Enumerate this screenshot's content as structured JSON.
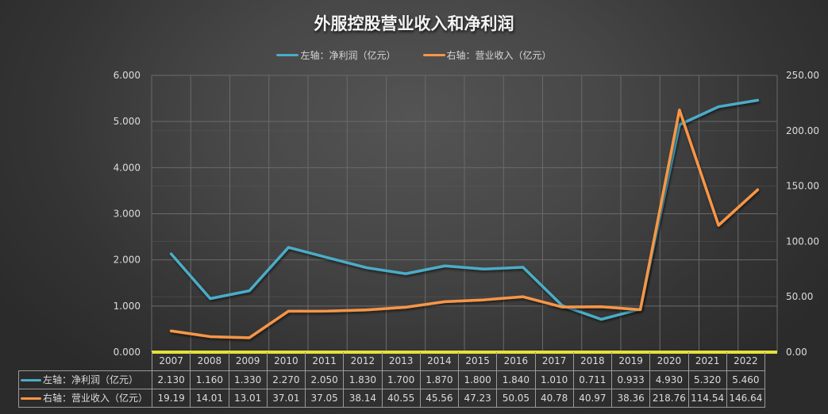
{
  "title": "外服控股营业收入和净利润",
  "legend": [
    {
      "label": "左轴：净利润（亿元）",
      "color": "#4BACC6"
    },
    {
      "label": "右轴：营业收入（亿元）",
      "color": "#F79646"
    }
  ],
  "colors": {
    "net_profit": "#4BACC6",
    "revenue": "#F79646",
    "baseline": "#E3E33A",
    "grid": "#6a6a6a"
  },
  "axes": {
    "left_ticks": [
      "6.000",
      "5.000",
      "4.000",
      "3.000",
      "2.000",
      "1.000",
      "0.000"
    ],
    "right_ticks": [
      "250.00",
      "200.00",
      "150.00",
      "100.00",
      "50.00",
      "0.00"
    ]
  },
  "table": {
    "years": [
      "2007",
      "2008",
      "2009",
      "2010",
      "2011",
      "2012",
      "2013",
      "2014",
      "2015",
      "2016",
      "2017",
      "2018",
      "2019",
      "2020",
      "2021",
      "2022"
    ],
    "rows": [
      {
        "label": "左轴：净利润（亿元）",
        "color": "#4BACC6",
        "values": [
          "2.130",
          "1.160",
          "1.330",
          "2.270",
          "2.050",
          "1.830",
          "1.700",
          "1.870",
          "1.800",
          "1.840",
          "1.010",
          "0.711",
          "0.933",
          "4.930",
          "5.320",
          "5.460"
        ]
      },
      {
        "label": "右轴：营业收入（亿元）",
        "color": "#F79646",
        "values": [
          "19.19",
          "14.01",
          "13.01",
          "37.01",
          "37.05",
          "38.14",
          "40.55",
          "45.56",
          "47.23",
          "50.05",
          "40.78",
          "40.97",
          "38.36",
          "218.76",
          "114.54",
          "146.64"
        ]
      }
    ]
  },
  "chart_data": {
    "type": "line",
    "title": "外服控股营业收入和净利润",
    "categories": [
      "2007",
      "2008",
      "2009",
      "2010",
      "2011",
      "2012",
      "2013",
      "2014",
      "2015",
      "2016",
      "2017",
      "2018",
      "2019",
      "2020",
      "2021",
      "2022"
    ],
    "series": [
      {
        "name": "左轴：净利润（亿元）",
        "axis": "left",
        "color": "#4BACC6",
        "values": [
          2.13,
          1.16,
          1.33,
          2.27,
          2.05,
          1.83,
          1.7,
          1.87,
          1.8,
          1.84,
          1.01,
          0.711,
          0.933,
          4.93,
          5.32,
          5.46
        ]
      },
      {
        "name": "右轴：营业收入（亿元）",
        "axis": "right",
        "color": "#F79646",
        "values": [
          19.19,
          14.01,
          13.01,
          37.01,
          37.05,
          38.14,
          40.55,
          45.56,
          47.23,
          50.05,
          40.78,
          40.97,
          38.36,
          218.76,
          114.54,
          146.64
        ]
      }
    ],
    "xlabel": "",
    "ylabel": "",
    "y2label": "",
    "ylim": [
      0,
      6
    ],
    "y2lim": [
      0,
      250
    ],
    "grid": true,
    "legend_position": "top",
    "data_table": true
  }
}
